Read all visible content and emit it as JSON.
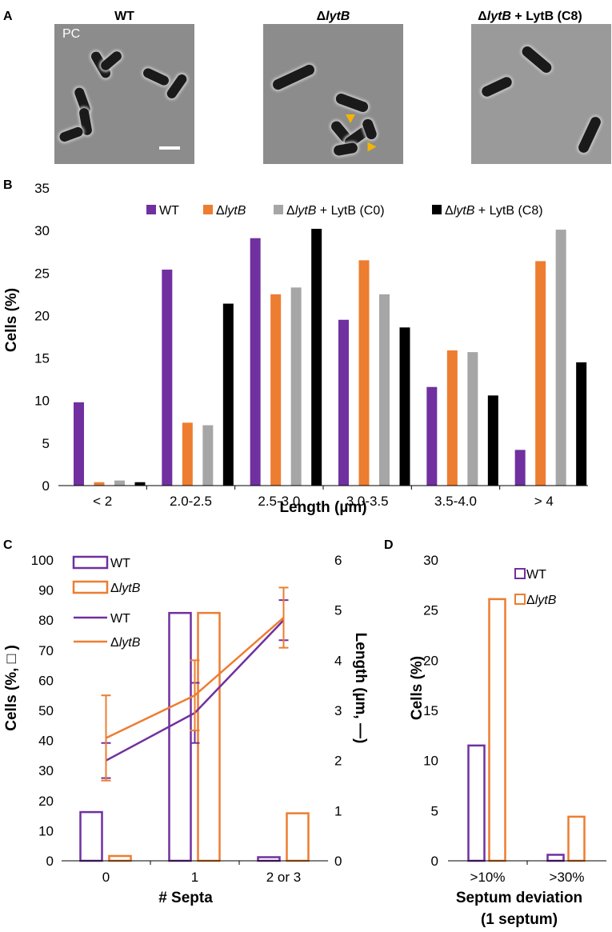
{
  "panel_letters": {
    "a": "A",
    "b": "B",
    "c": "C",
    "d": "D"
  },
  "panel_a": {
    "titles": [
      "WT",
      "ΔlytB",
      "ΔlytB + LytB (C8)"
    ],
    "pc_label": "PC"
  },
  "colors": {
    "wt": "#7030a0",
    "lytb": "#ed7d31",
    "c0": "#a6a6a6",
    "c8": "#000000",
    "arrow": "#f5b400"
  },
  "chart_data": [
    {
      "id": "B",
      "type": "bar",
      "categories": [
        "< 2",
        "2.0-2.5",
        "2.5-3.0",
        "3.0-3.5",
        "3.5-4.0",
        "> 4"
      ],
      "series": [
        {
          "name": "WT",
          "values": [
            9.8,
            25.4,
            29.1,
            19.5,
            11.6,
            4.2
          ]
        },
        {
          "name": "ΔlytB",
          "values": [
            0.4,
            7.4,
            22.5,
            26.5,
            15.9,
            26.4
          ]
        },
        {
          "name": "ΔlytB + LytB (C0)",
          "values": [
            0.6,
            7.1,
            23.3,
            22.5,
            15.7,
            30.1
          ]
        },
        {
          "name": "ΔlytB + LytB (C8)",
          "values": [
            0.4,
            21.4,
            30.2,
            18.6,
            10.6,
            14.5
          ]
        }
      ],
      "xlabel": "Length (µm)",
      "ylabel": "Cells (%)",
      "ylim": [
        0,
        35
      ],
      "yticks": [
        "0",
        "5",
        "10",
        "15",
        "20",
        "25",
        "30",
        "35"
      ],
      "legend": "top"
    },
    {
      "id": "C",
      "type": "bar+line",
      "categories": [
        "0",
        "1",
        "2 or 3"
      ],
      "bars": [
        {
          "name": "WT",
          "values": [
            16.2,
            82.4,
            1.2
          ]
        },
        {
          "name": "ΔlytB",
          "values": [
            1.6,
            82.4,
            15.8
          ]
        }
      ],
      "lines": [
        {
          "name": "WT",
          "values": [
            2.0,
            2.95,
            4.8
          ],
          "err": [
            0.35,
            0.6,
            0.4
          ]
        },
        {
          "name": "ΔlytB",
          "values": [
            2.45,
            3.3,
            4.85
          ],
          "err": [
            0.85,
            0.7,
            0.6
          ]
        }
      ],
      "xlabel": "# Septa",
      "ylabel": "Cells (%, □ )",
      "y2label": "Length (µm, —)",
      "ylim": [
        0,
        100
      ],
      "y2lim": [
        0,
        6
      ],
      "yticks": [
        "0",
        "10",
        "20",
        "30",
        "40",
        "50",
        "60",
        "70",
        "80",
        "90",
        "100"
      ],
      "y2ticks": [
        "0",
        "1",
        "2",
        "3",
        "4",
        "5",
        "6"
      ],
      "legend": [
        "WT",
        "ΔlytB",
        "WT",
        "ΔlytB"
      ]
    },
    {
      "id": "D",
      "type": "bar",
      "categories": [
        ">10%",
        ">30%"
      ],
      "series": [
        {
          "name": "WT",
          "values": [
            11.5,
            0.6
          ]
        },
        {
          "name": "ΔlytB",
          "values": [
            26.1,
            4.4
          ]
        }
      ],
      "xlabel": "Septum deviation",
      "xlabel2": "(1 septum)",
      "ylabel": "Cells (%)",
      "ylim": [
        0,
        30
      ],
      "yticks": [
        "0",
        "5",
        "10",
        "15",
        "20",
        "25",
        "30"
      ],
      "legend": [
        "WT",
        "ΔlytB"
      ]
    }
  ]
}
